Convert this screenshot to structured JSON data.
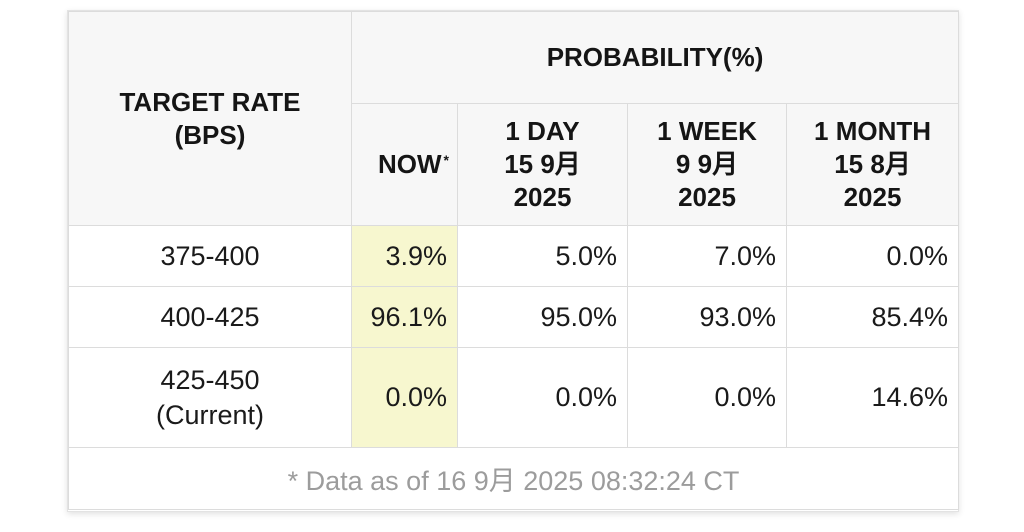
{
  "table": {
    "header": {
      "target_rate_line1": "TARGET RATE",
      "target_rate_line2": "(BPS)",
      "probability": "PROBABILITY(%)",
      "now_label": "NOW",
      "now_marker": "*",
      "columns": [
        {
          "line1": "1 DAY",
          "line2": "15 9月",
          "line3": "2025"
        },
        {
          "line1": "1 WEEK",
          "line2": "9 9月",
          "line3": "2025"
        },
        {
          "line1": "1 MONTH",
          "line2": "15 8月",
          "line3": "2025"
        }
      ]
    },
    "rows": [
      {
        "rate": "375-400",
        "rate_note": "",
        "now": "3.9%",
        "day": "5.0%",
        "week": "7.0%",
        "month": "0.0%"
      },
      {
        "rate": "400-425",
        "rate_note": "",
        "now": "96.1%",
        "day": "95.0%",
        "week": "93.0%",
        "month": "85.4%"
      },
      {
        "rate": "425-450",
        "rate_note": "(Current)",
        "now": "0.0%",
        "day": "0.0%",
        "week": "0.0%",
        "month": "14.6%"
      }
    ],
    "footnote": "* Data as of 16 9月 2025 08:32:24 CT"
  },
  "colors": {
    "now_highlight": "#f7f7cf",
    "header_bg": "#f7f7f7",
    "border": "#dcdcdc",
    "footnote_text": "#9c9c9c"
  }
}
